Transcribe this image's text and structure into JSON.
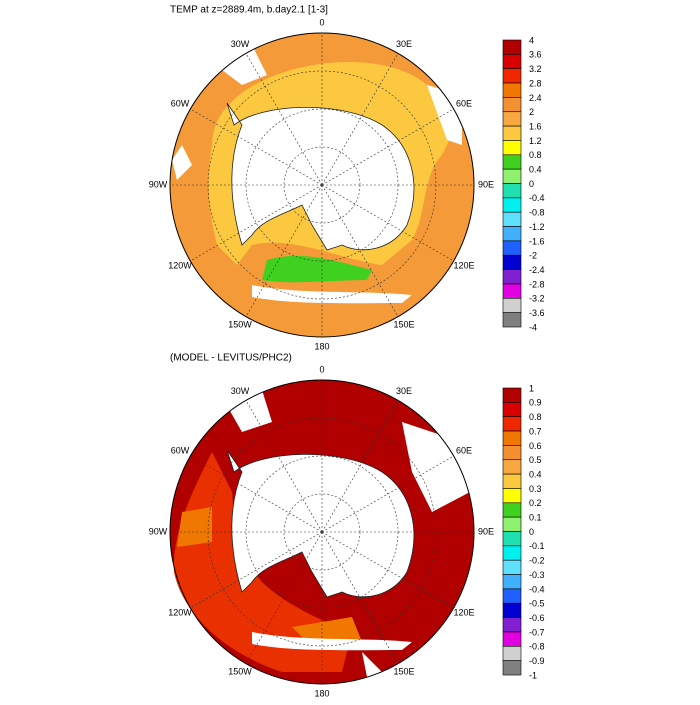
{
  "maps": [
    {
      "title": "TEMP at z=2889.4m, b.day2.1 [1-3]",
      "lon_labels": [
        "0",
        "30E",
        "60E",
        "90E",
        "120E",
        "150E",
        "180",
        "150W",
        "120W",
        "90W",
        "60W",
        "30W"
      ],
      "colorbar": {
        "labels": [
          4,
          3.6,
          3.2,
          2.8,
          2.4,
          2,
          1.6,
          1.2,
          0.8,
          0.4,
          0,
          -0.4,
          -0.8,
          -1.2,
          -1.6,
          -2,
          -2.4,
          -2.8,
          -3.2,
          -3.6,
          -4
        ],
        "colors": [
          "#b00000",
          "#d80000",
          "#f02800",
          "#f07800",
          "#f49030",
          "#f8a840",
          "#fcc840",
          "#ffff00",
          "#40d020",
          "#90f070",
          "#20e0b0",
          "#00f0f0",
          "#60e0ff",
          "#40b0ff",
          "#2060ff",
          "#0000d0",
          "#8020d0",
          "#e000e0",
          "#d0d0d0",
          "#808080"
        ]
      }
    },
    {
      "title": "(MODEL - LEVITUS/PHC2)",
      "lon_labels": [
        "0",
        "30E",
        "60E",
        "90E",
        "120E",
        "150E",
        "180",
        "150W",
        "120W",
        "90W",
        "60W",
        "30W"
      ],
      "colorbar": {
        "labels": [
          1,
          0.9,
          0.8,
          0.7,
          0.6,
          0.5,
          0.4,
          0.3,
          0.2,
          0.1,
          0,
          -0.1,
          -0.2,
          -0.3,
          -0.4,
          -0.5,
          -0.6,
          -0.7,
          -0.8,
          -0.9,
          -1
        ],
        "colors": [
          "#b00000",
          "#d80000",
          "#f02800",
          "#f07800",
          "#f49030",
          "#f8a840",
          "#fcc840",
          "#ffff00",
          "#40d020",
          "#90f070",
          "#20e0b0",
          "#00f0f0",
          "#60e0ff",
          "#40b0ff",
          "#2060ff",
          "#0000d0",
          "#8020d0",
          "#e000e0",
          "#d0d0d0",
          "#808080"
        ]
      }
    }
  ]
}
